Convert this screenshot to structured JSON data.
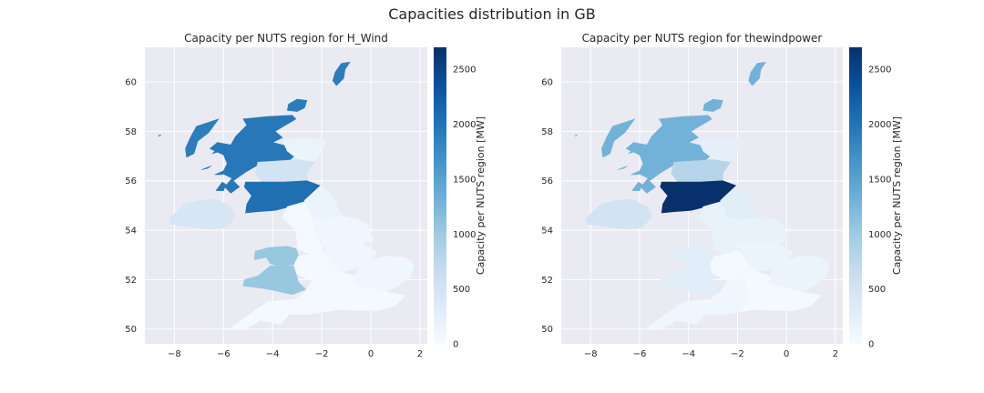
{
  "figure": {
    "title": "Capacities distribution in GB"
  },
  "chart_data": [
    {
      "type": "choropleth",
      "title": "Capacity per NUTS region for H_Wind",
      "xlim": [
        -9.2,
        2.3
      ],
      "ylim": [
        49.4,
        61.4
      ],
      "x_ticks": [
        -8,
        -6,
        -4,
        -2,
        0,
        2
      ],
      "x_tick_labels": [
        "−8",
        "−6",
        "−4",
        "−2",
        "0",
        "2"
      ],
      "y_ticks": [
        50,
        52,
        54,
        56,
        58,
        60
      ],
      "y_tick_labels": [
        "50",
        "52",
        "54",
        "56",
        "58",
        "60"
      ],
      "grid": true,
      "colormap": "Blues",
      "colorbar": {
        "label": "Capacity per NUTS region [MW]",
        "range": [
          0,
          2700
        ],
        "ticks": [
          0,
          500,
          1000,
          1500,
          2000,
          2500
        ],
        "tick_labels": [
          "0",
          "500",
          "1000",
          "1500",
          "2000",
          "2500"
        ]
      },
      "regions": [
        {
          "id": "highlands-islands",
          "value": 1950
        },
        {
          "id": "shetland",
          "value": 1900
        },
        {
          "id": "orkney",
          "value": 1900
        },
        {
          "id": "outer-hebrides",
          "value": 1900
        },
        {
          "id": "north-eastern-scotland",
          "value": 150
        },
        {
          "id": "eastern-scotland",
          "value": 500
        },
        {
          "id": "southern-scotland",
          "value": 2050
        },
        {
          "id": "northern-ireland",
          "value": 450
        },
        {
          "id": "north-east-england",
          "value": 150
        },
        {
          "id": "north-west-england",
          "value": 50
        },
        {
          "id": "yorkshire-humber",
          "value": 100
        },
        {
          "id": "east-midlands",
          "value": 100
        },
        {
          "id": "west-midlands",
          "value": 50
        },
        {
          "id": "east-of-england",
          "value": 100
        },
        {
          "id": "london",
          "value": 0
        },
        {
          "id": "south-east-england",
          "value": 50
        },
        {
          "id": "south-west-england",
          "value": 50
        },
        {
          "id": "north-wales",
          "value": 1050
        },
        {
          "id": "south-wales",
          "value": 1050
        }
      ]
    },
    {
      "type": "choropleth",
      "title": "Capacity per NUTS region for thewindpower",
      "xlim": [
        -9.2,
        2.3
      ],
      "ylim": [
        49.4,
        61.4
      ],
      "x_ticks": [
        -8,
        -6,
        -4,
        -2,
        0,
        2
      ],
      "x_tick_labels": [
        "−8",
        "−6",
        "−4",
        "−2",
        "0",
        "2"
      ],
      "y_ticks": [
        50,
        52,
        54,
        56,
        58,
        60
      ],
      "y_tick_labels": [
        "50",
        "52",
        "54",
        "56",
        "58",
        "60"
      ],
      "grid": true,
      "colormap": "Blues",
      "colorbar": {
        "label": "Capacity per NUTS region [MW]",
        "range": [
          0,
          2700
        ],
        "ticks": [
          0,
          500,
          1000,
          1500,
          2000,
          2500
        ],
        "tick_labels": [
          "0",
          "500",
          "1000",
          "1500",
          "2000",
          "2500"
        ]
      },
      "regions": [
        {
          "id": "highlands-islands",
          "value": 1300
        },
        {
          "id": "shetland",
          "value": 1300
        },
        {
          "id": "orkney",
          "value": 1300
        },
        {
          "id": "outer-hebrides",
          "value": 1300
        },
        {
          "id": "north-eastern-scotland",
          "value": 250
        },
        {
          "id": "eastern-scotland",
          "value": 800
        },
        {
          "id": "southern-scotland",
          "value": 2700
        },
        {
          "id": "northern-ireland",
          "value": 500
        },
        {
          "id": "north-east-england",
          "value": 300
        },
        {
          "id": "north-west-england",
          "value": 200
        },
        {
          "id": "yorkshire-humber",
          "value": 200
        },
        {
          "id": "east-midlands",
          "value": 150
        },
        {
          "id": "west-midlands",
          "value": 50
        },
        {
          "id": "east-of-england",
          "value": 150
        },
        {
          "id": "london",
          "value": 0
        },
        {
          "id": "south-east-england",
          "value": 50
        },
        {
          "id": "south-west-england",
          "value": 100
        },
        {
          "id": "north-wales",
          "value": 300
        },
        {
          "id": "south-wales",
          "value": 300
        }
      ]
    }
  ]
}
